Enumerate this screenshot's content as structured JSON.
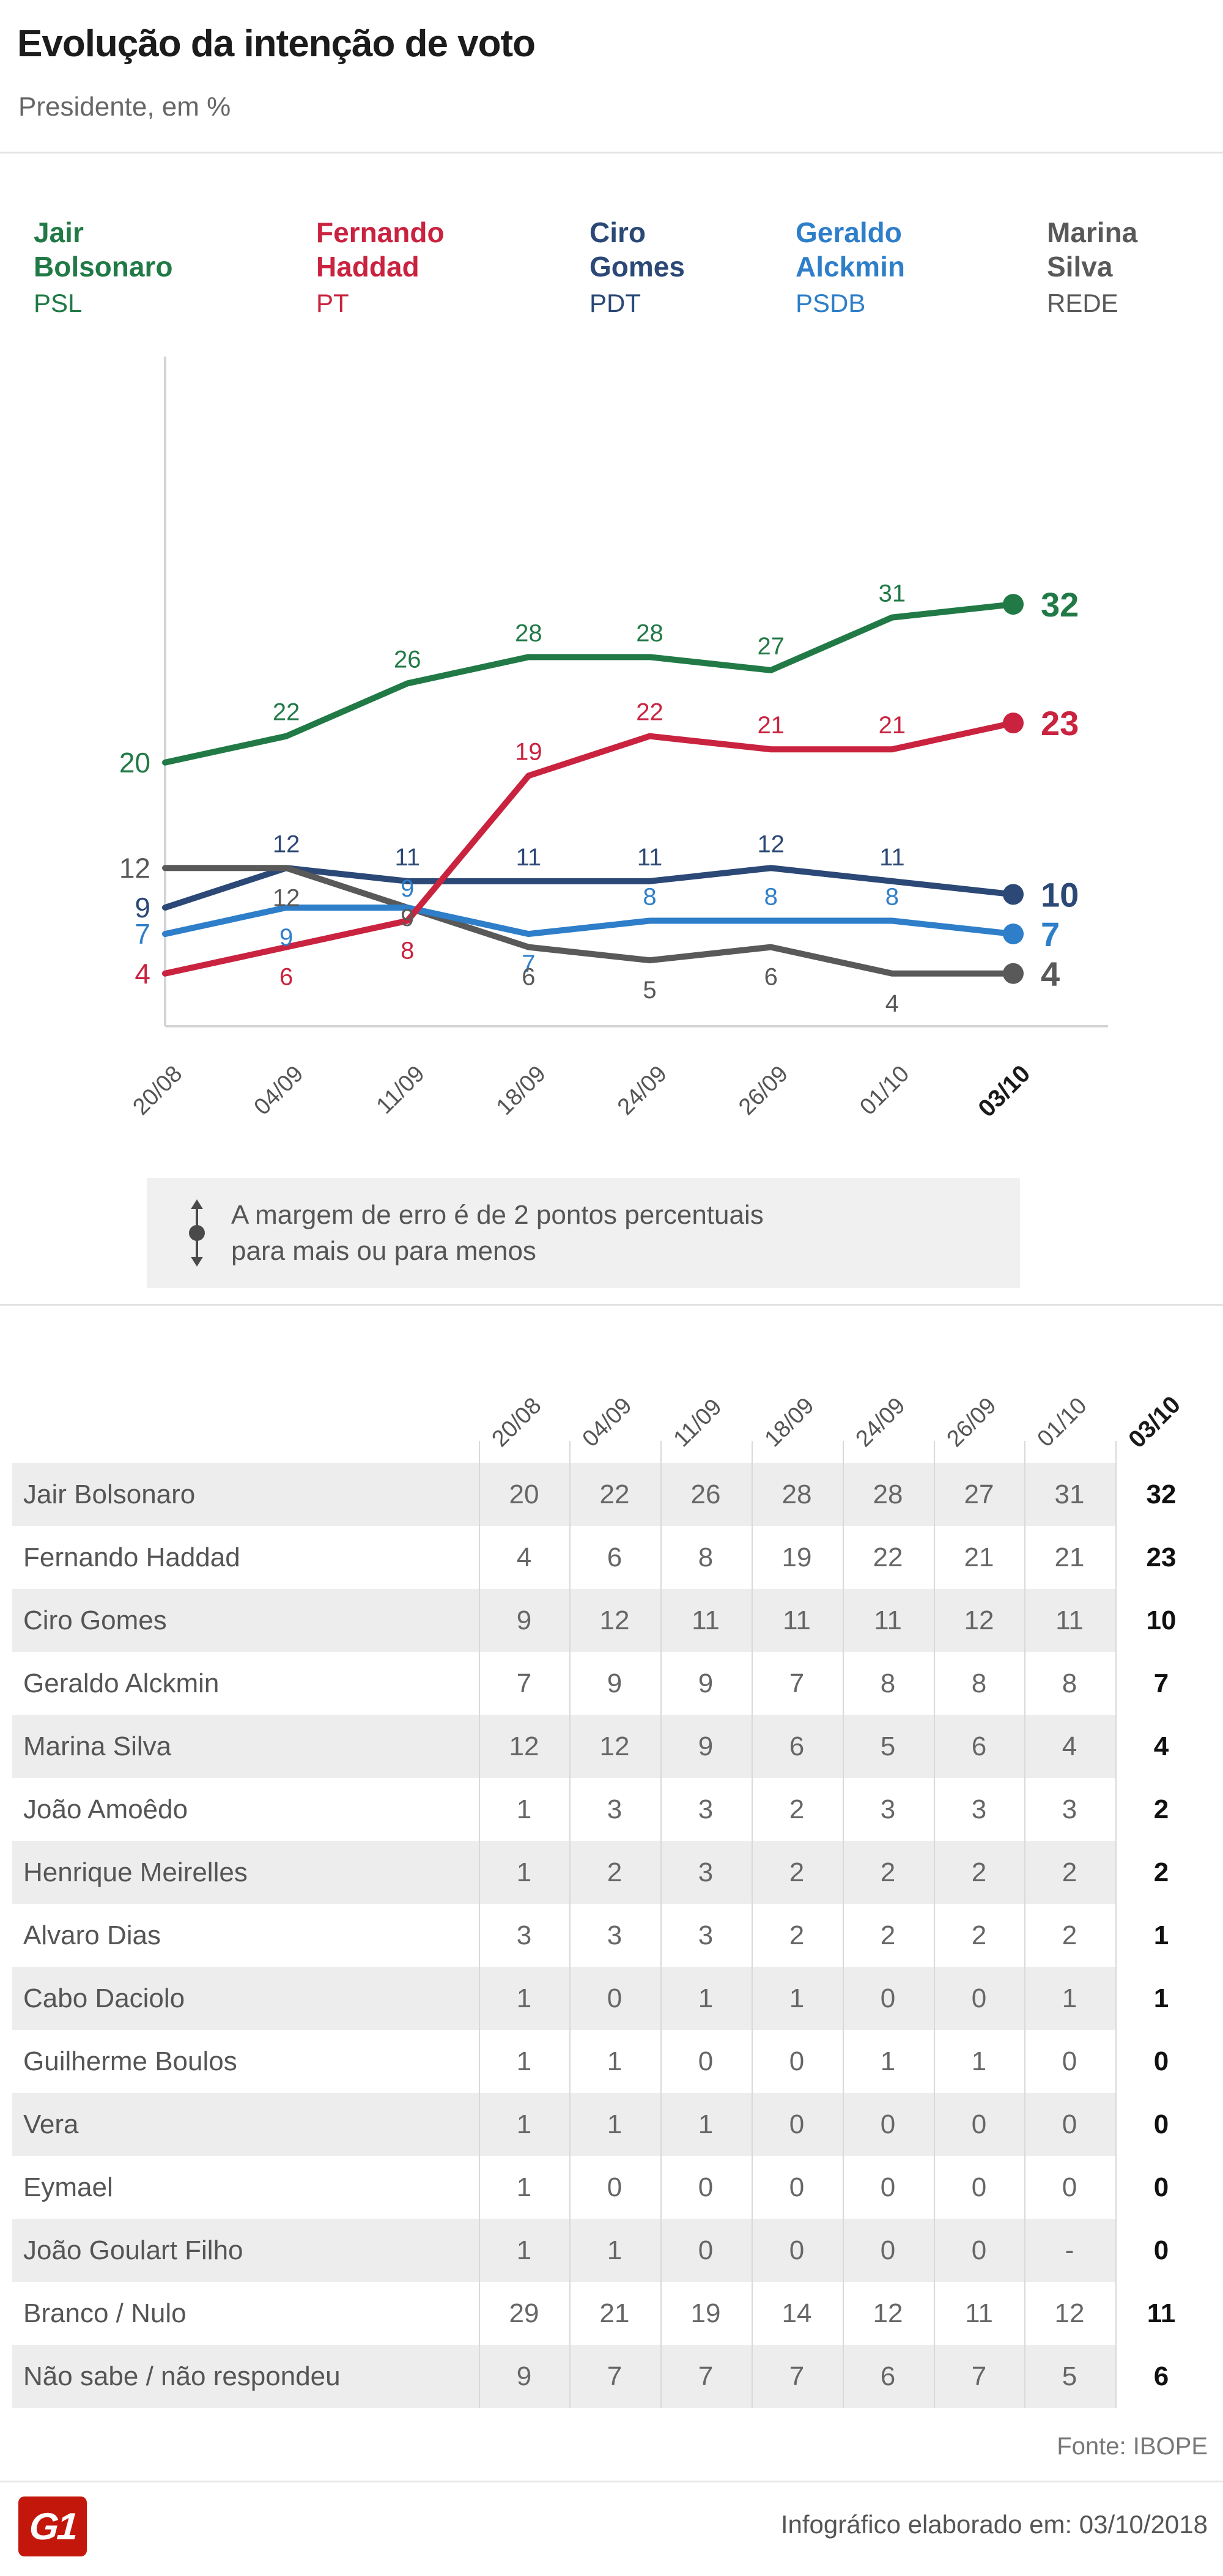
{
  "header": {
    "title": "Evolução da intenção de voto",
    "subtitle": "Presidente, em %"
  },
  "legend": [
    {
      "name": "Jair\nBolsonaro",
      "party": "PSL",
      "color": "#217a46"
    },
    {
      "name": "Fernando\nHaddad",
      "party": "PT",
      "color": "#c9233f"
    },
    {
      "name": "Ciro\nGomes",
      "party": "PDT",
      "color": "#2b4876"
    },
    {
      "name": "Geraldo\nAlckmin",
      "party": "PSDB",
      "color": "#2e7ec9"
    },
    {
      "name": "Marina\nSilva",
      "party": "REDE",
      "color": "#595959"
    }
  ],
  "chart_data": {
    "type": "line",
    "x": [
      "20/08",
      "04/09",
      "11/09",
      "18/09",
      "24/09",
      "26/09",
      "01/10",
      "03/10"
    ],
    "series": [
      {
        "name": "Jair Bolsonaro",
        "color": "#217a46",
        "values": [
          20,
          22,
          26,
          28,
          28,
          27,
          31,
          32
        ]
      },
      {
        "name": "Fernando Haddad",
        "color": "#c9233f",
        "values": [
          4,
          6,
          8,
          19,
          22,
          21,
          21,
          23
        ]
      },
      {
        "name": "Ciro Gomes",
        "color": "#2b4876",
        "values": [
          9,
          12,
          11,
          11,
          11,
          12,
          11,
          10
        ]
      },
      {
        "name": "Geraldo Alckmin",
        "color": "#2e7ec9",
        "values": [
          7,
          9,
          9,
          7,
          8,
          8,
          8,
          7
        ]
      },
      {
        "name": "Marina Silva",
        "color": "#595959",
        "values": [
          12,
          12,
          9,
          6,
          5,
          6,
          4,
          4
        ]
      }
    ],
    "ylim": [
      0,
      51
    ],
    "grid": false,
    "legend_position": "top",
    "last_point_highlighted": true
  },
  "note": {
    "line1": "A margem de erro é de 2 pontos percentuais",
    "line2": "para mais ou para menos"
  },
  "table": {
    "columns": [
      "20/08",
      "04/09",
      "11/09",
      "18/09",
      "24/09",
      "26/09",
      "01/10",
      "03/10"
    ],
    "rows": [
      {
        "name": "Jair Bolsonaro",
        "values": [
          20,
          22,
          26,
          28,
          28,
          27,
          31,
          32
        ]
      },
      {
        "name": "Fernando Haddad",
        "values": [
          4,
          6,
          8,
          19,
          22,
          21,
          21,
          23
        ]
      },
      {
        "name": "Ciro Gomes",
        "values": [
          9,
          12,
          11,
          11,
          11,
          12,
          11,
          10
        ]
      },
      {
        "name": "Geraldo Alckmin",
        "values": [
          7,
          9,
          9,
          7,
          8,
          8,
          8,
          7
        ]
      },
      {
        "name": "Marina Silva",
        "values": [
          12,
          12,
          9,
          6,
          5,
          6,
          4,
          4
        ]
      },
      {
        "name": "João Amoêdo",
        "values": [
          1,
          3,
          3,
          2,
          3,
          3,
          3,
          2
        ]
      },
      {
        "name": "Henrique Meirelles",
        "values": [
          1,
          2,
          3,
          2,
          2,
          2,
          2,
          2
        ]
      },
      {
        "name": "Alvaro Dias",
        "values": [
          3,
          3,
          3,
          2,
          2,
          2,
          2,
          1
        ]
      },
      {
        "name": "Cabo Daciolo",
        "values": [
          1,
          0,
          1,
          1,
          0,
          0,
          1,
          1
        ]
      },
      {
        "name": "Guilherme Boulos",
        "values": [
          1,
          1,
          0,
          0,
          1,
          1,
          0,
          0
        ]
      },
      {
        "name": "Vera",
        "values": [
          1,
          1,
          1,
          0,
          0,
          0,
          0,
          0
        ]
      },
      {
        "name": "Eymael",
        "values": [
          1,
          0,
          0,
          0,
          0,
          0,
          0,
          0
        ]
      },
      {
        "name": "João Goulart Filho",
        "values": [
          1,
          1,
          0,
          0,
          0,
          0,
          "-",
          0
        ]
      },
      {
        "name": "Branco / Nulo",
        "values": [
          29,
          21,
          19,
          14,
          12,
          11,
          12,
          11
        ]
      },
      {
        "name": "Não sabe / não respondeu",
        "values": [
          9,
          7,
          7,
          7,
          6,
          7,
          5,
          6
        ]
      }
    ]
  },
  "footer": {
    "source": "Fonte: IBOPE",
    "elaborated": "Infográfico elaborado em: 03/10/2018",
    "logo_text": "G1",
    "logo_color": "#c4170c"
  }
}
